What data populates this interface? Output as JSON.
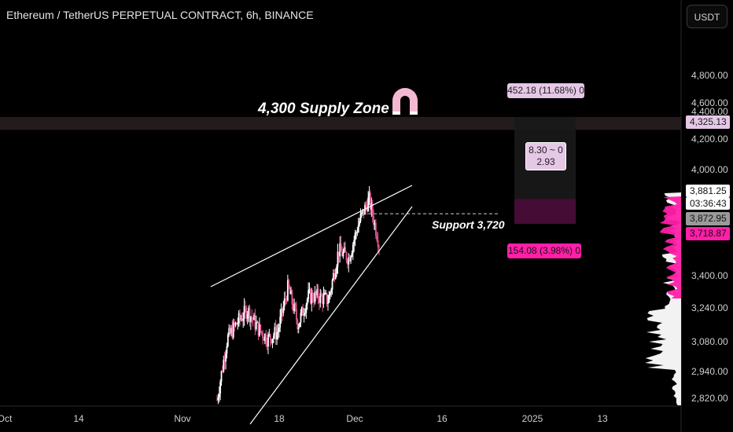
{
  "header": {
    "title": "Ethereum / TetherUS PERPETUAL CONTRACT, 6h, BINANCE",
    "currency": "USDT"
  },
  "colors": {
    "background": "#000000",
    "up": "#ffffff",
    "down": "#e0568f",
    "accent": "#ff1fa8",
    "supply_zone": "#2a2022"
  },
  "annotations": {
    "supply_zone": "4,300 Supply Zone",
    "support": "Support 3,720",
    "magnet_icon": "magnet-icon"
  },
  "measure": {
    "top": "452.18 (11.68%) 0",
    "middle_line1": "8.30 ~ 0",
    "middle_line2": "2.93",
    "bottom": "154.08 (3.98%) 0"
  },
  "price_tags": {
    "supply": "4,325.13",
    "last": "3,881.25",
    "countdown": "03:36:43",
    "close": "3,872.95",
    "support": "3,718.87"
  },
  "chart_data": {
    "type": "candlestick",
    "title": "Ethereum / TetherUS PERPETUAL CONTRACT, 6h, BINANCE",
    "y_ticks": [
      "4,800.00",
      "4,600.00",
      "4,400.00",
      "4,200.00",
      "4,000.00",
      "3,400.00",
      "3,240.00",
      "3,080.00",
      "2,940.00",
      "2,820.00"
    ],
    "x_ticks": [
      "Oct",
      "14",
      "Nov",
      "18",
      "Dec",
      "16",
      "2025",
      "13"
    ],
    "y_range": [
      2760,
      4960
    ],
    "supply_zone": [
      4255,
      4325
    ],
    "support_level": 3720,
    "wedge": {
      "upper": [
        [
          3360,
          3425
        ],
        [
          4020,
          3945
        ]
      ],
      "lower": [
        [
          2800,
          3720
        ]
      ]
    },
    "price_path": [
      [
        2790,
        2820
      ],
      [
        3120,
        3080
      ],
      [
        3210,
        3310
      ],
      [
        3280,
        3470
      ],
      [
        3180,
        3190
      ],
      [
        3120,
        3080
      ],
      [
        3160,
        3100
      ],
      [
        3400,
        3290
      ],
      [
        3200,
        3470
      ],
      [
        3350,
        3260
      ],
      [
        3350,
        3500
      ],
      [
        3330,
        3310
      ],
      [
        3600,
        3690
      ],
      [
        3560,
        3690
      ],
      [
        3750,
        3720
      ],
      [
        3880,
        3650
      ],
      [
        3640,
        3850
      ]
    ]
  }
}
